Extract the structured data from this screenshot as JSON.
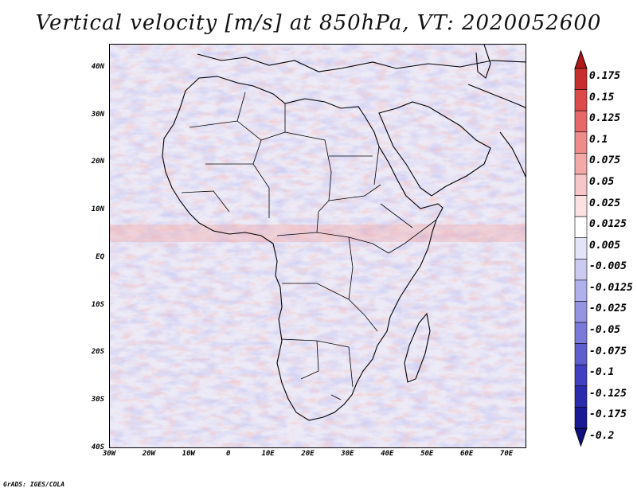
{
  "title": "Vertical velocity [m/s] at 850hPa, VT: 2020052600",
  "credit": "GrADS: IGES/COLA",
  "map": {
    "variable": "vertical velocity",
    "units": "m/s",
    "level": "850hPa",
    "valid_time": "2020052600",
    "lat_range": [
      -40,
      45
    ],
    "lon_range": [
      -30,
      75
    ],
    "lat_ticks": [
      "40N",
      "30N",
      "20N",
      "10N",
      "EQ",
      "10S",
      "20S",
      "30S",
      "40S"
    ],
    "lon_ticks": [
      "30W",
      "20W",
      "10W",
      "0",
      "10E",
      "20E",
      "30E",
      "40E",
      "50E",
      "60E",
      "70E"
    ]
  },
  "colorbar": {
    "labels": [
      "0.175",
      "0.15",
      "0.125",
      "0.1",
      "0.075",
      "0.05",
      "0.025",
      "0.0125",
      "0.005",
      "-0.005",
      "-0.0125",
      "-0.025",
      "-0.05",
      "-0.075",
      "-0.1",
      "-0.125",
      "-0.175",
      "-0.2"
    ],
    "colors": [
      "#b01818",
      "#c92e2e",
      "#dc4a4a",
      "#e66868",
      "#ee8b8b",
      "#f3a9a9",
      "#f7c6c6",
      "#fbe1e1",
      "#ffffff",
      "#e4e4f8",
      "#cbcbf2",
      "#b0b0ec",
      "#9494e3",
      "#7a7ad9",
      "#5e5ece",
      "#4040c0",
      "#2b2bae",
      "#1a1a96",
      "#10107e"
    ]
  }
}
